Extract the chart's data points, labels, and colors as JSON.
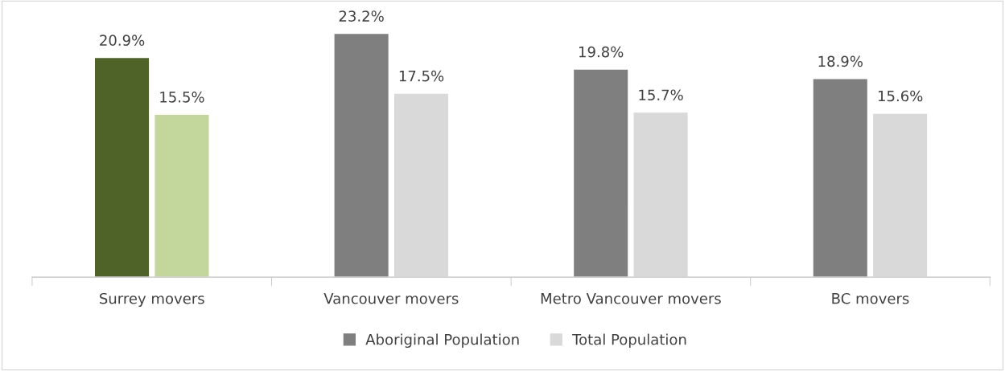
{
  "chart_data": {
    "type": "bar",
    "categories": [
      "Surrey movers",
      "Vancouver movers",
      "Metro Vancouver movers",
      "BC movers"
    ],
    "series": [
      {
        "name": "Aboriginal Population",
        "color": "#7f7f7f",
        "colors": [
          "#4f6228",
          "#7f7f7f",
          "#7f7f7f",
          "#7f7f7f"
        ],
        "values": [
          20.9,
          23.2,
          19.8,
          18.9
        ],
        "value_labels": [
          "20.9%",
          "23.2%",
          "19.8%",
          "18.9%"
        ]
      },
      {
        "name": "Total Population",
        "color": "#d9d9d9",
        "colors": [
          "#c3d69b",
          "#d9d9d9",
          "#d9d9d9",
          "#d9d9d9"
        ],
        "values": [
          15.5,
          17.5,
          15.7,
          15.6
        ],
        "value_labels": [
          "15.5%",
          "17.5%",
          "15.7%",
          "15.6%"
        ]
      }
    ],
    "tick_labels": "x",
    "grid": false,
    "legend": "bottom"
  }
}
